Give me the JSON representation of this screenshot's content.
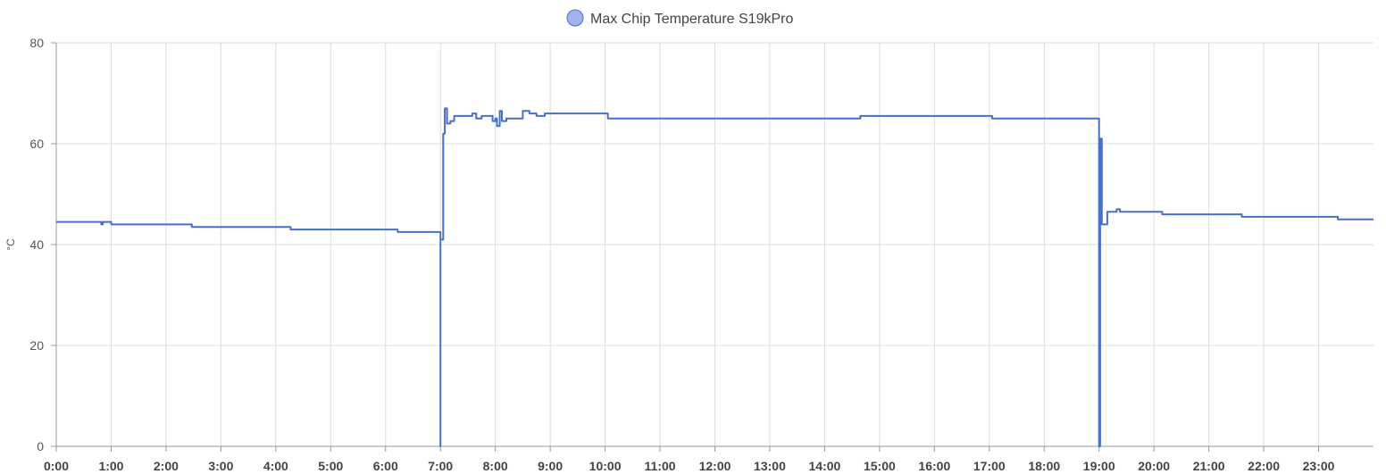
{
  "chart_data": {
    "type": "line",
    "legend_position": "top-center",
    "grid": true,
    "ylabel": "°C",
    "xlim": [
      0,
      24
    ],
    "ylim": [
      0,
      80
    ],
    "y_ticks": [
      0,
      20,
      40,
      60,
      80
    ],
    "x_ticks": [
      0,
      1,
      2,
      3,
      4,
      5,
      6,
      7,
      8,
      9,
      10,
      11,
      12,
      13,
      14,
      15,
      16,
      17,
      18,
      19,
      20,
      21,
      22,
      23
    ],
    "x_tick_labels": [
      "0:00",
      "1:00",
      "2:00",
      "3:00",
      "4:00",
      "5:00",
      "6:00",
      "7:00",
      "8:00",
      "9:00",
      "10:00",
      "11:00",
      "12:00",
      "13:00",
      "14:00",
      "15:00",
      "16:00",
      "17:00",
      "18:00",
      "19:00",
      "20:00",
      "21:00",
      "22:00",
      "23:00"
    ],
    "colors": {
      "series": "#4a6fc9",
      "legend_fill": "#9fb4e8",
      "grid": "#dddddd",
      "axis": "#999999"
    },
    "series": [
      {
        "name": "Max Chip Temperature S19kPro",
        "points": [
          [
            0,
            44.5
          ],
          [
            0.8,
            44.5
          ],
          [
            0.82,
            44
          ],
          [
            0.85,
            44.5
          ],
          [
            0.97,
            44.5
          ],
          [
            1.0,
            44
          ],
          [
            2.45,
            44
          ],
          [
            2.47,
            43.5
          ],
          [
            4.25,
            43.5
          ],
          [
            4.27,
            43
          ],
          [
            6.2,
            43
          ],
          [
            6.22,
            42.5
          ],
          [
            7.0,
            42.5
          ],
          [
            7.0,
            0
          ],
          [
            7.0,
            41
          ],
          [
            7.05,
            62
          ],
          [
            7.08,
            67
          ],
          [
            7.12,
            64
          ],
          [
            7.18,
            64.5
          ],
          [
            7.25,
            65.5
          ],
          [
            7.5,
            65.5
          ],
          [
            7.58,
            66
          ],
          [
            7.65,
            65
          ],
          [
            7.75,
            65.5
          ],
          [
            7.9,
            65.5
          ],
          [
            7.95,
            64.5
          ],
          [
            8.0,
            65
          ],
          [
            8.03,
            63.5
          ],
          [
            8.08,
            66.5
          ],
          [
            8.12,
            64.5
          ],
          [
            8.2,
            65
          ],
          [
            8.38,
            65
          ],
          [
            8.5,
            66.5
          ],
          [
            8.62,
            66
          ],
          [
            8.75,
            65.5
          ],
          [
            8.9,
            66
          ],
          [
            10.0,
            66
          ],
          [
            10.05,
            65
          ],
          [
            14.6,
            65
          ],
          [
            14.65,
            65.5
          ],
          [
            16.0,
            65.5
          ],
          [
            17.0,
            65.5
          ],
          [
            17.05,
            65
          ],
          [
            19.0,
            65
          ],
          [
            19.0,
            0
          ],
          [
            19.02,
            61
          ],
          [
            19.05,
            44
          ],
          [
            19.15,
            46.5
          ],
          [
            19.3,
            46.5
          ],
          [
            19.32,
            47
          ],
          [
            19.38,
            46.5
          ],
          [
            20.0,
            46.5
          ],
          [
            20.15,
            46
          ],
          [
            21.55,
            46
          ],
          [
            21.6,
            45.5
          ],
          [
            23.3,
            45.5
          ],
          [
            23.35,
            45
          ],
          [
            24.0,
            45
          ]
        ]
      }
    ]
  }
}
